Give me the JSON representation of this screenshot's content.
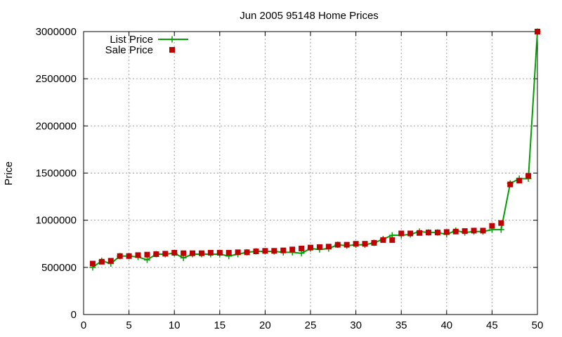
{
  "chart_data": {
    "type": "line",
    "title": "Jun 2005 95148 Home Prices",
    "xlabel": "",
    "ylabel": "Price",
    "xlim": [
      0,
      50
    ],
    "ylim": [
      0,
      3000000
    ],
    "xticks": [
      0,
      5,
      10,
      15,
      20,
      25,
      30,
      35,
      40,
      45,
      50
    ],
    "yticks": [
      0,
      500000,
      1000000,
      1500000,
      2000000,
      2500000,
      3000000
    ],
    "grid": true,
    "legend_position": "top-left",
    "x": [
      1,
      2,
      3,
      4,
      5,
      6,
      7,
      8,
      9,
      10,
      11,
      12,
      13,
      14,
      15,
      16,
      17,
      18,
      19,
      20,
      21,
      22,
      23,
      24,
      25,
      26,
      27,
      28,
      29,
      30,
      31,
      32,
      33,
      34,
      35,
      36,
      37,
      38,
      39,
      40,
      41,
      42,
      43,
      44,
      45,
      46,
      47,
      48,
      49,
      50
    ],
    "series": [
      {
        "name": "List Price",
        "style": "line-plus",
        "color": "#00a000",
        "values": [
          500000,
          570000,
          540000,
          620000,
          620000,
          610000,
          580000,
          640000,
          640000,
          650000,
          600000,
          640000,
          640000,
          640000,
          640000,
          620000,
          640000,
          660000,
          670000,
          670000,
          670000,
          660000,
          660000,
          650000,
          700000,
          690000,
          700000,
          740000,
          730000,
          740000,
          740000,
          760000,
          800000,
          840000,
          840000,
          850000,
          880000,
          870000,
          870000,
          850000,
          890000,
          870000,
          880000,
          880000,
          900000,
          900000,
          1390000,
          1440000,
          1440000,
          3000000
        ]
      },
      {
        "name": "Sale Price",
        "style": "square",
        "color": "#c00000",
        "values": [
          540000,
          560000,
          570000,
          620000,
          620000,
          630000,
          635000,
          640000,
          645000,
          655000,
          650000,
          650000,
          650000,
          655000,
          655000,
          655000,
          660000,
          660000,
          670000,
          675000,
          675000,
          680000,
          690000,
          700000,
          710000,
          715000,
          720000,
          740000,
          740000,
          750000,
          750000,
          760000,
          790000,
          790000,
          860000,
          860000,
          865000,
          870000,
          870000,
          875000,
          880000,
          885000,
          890000,
          890000,
          940000,
          970000,
          1380000,
          1420000,
          1470000,
          3000000
        ]
      }
    ]
  }
}
